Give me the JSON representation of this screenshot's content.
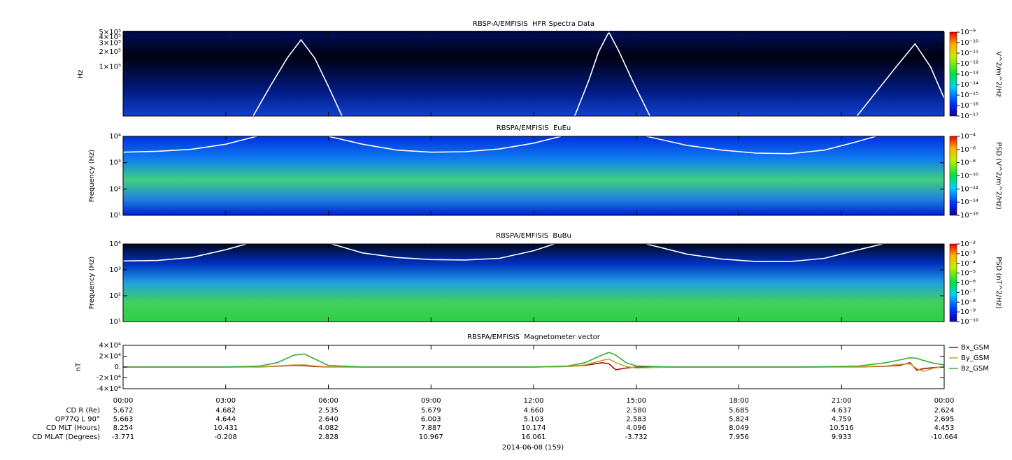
{
  "chart_data": [
    {
      "type": "spectrogram",
      "title": "RBSP-A/EMFISIS  HFR Spectra Data",
      "y_label": "Hz",
      "log_y": true,
      "xlim": [
        0,
        24
      ],
      "ylim": [
        10000,
        500000
      ],
      "yticks": [
        {
          "value": 100000,
          "label": "1×10⁵"
        },
        {
          "value": 200000,
          "label": "2×10⁵"
        },
        {
          "value": 300000,
          "label": "3×10⁵"
        },
        {
          "value": 400000,
          "label": "4×10⁵"
        },
        {
          "value": 500000,
          "label": "5×10⁵"
        }
      ],
      "x": [
        3.8,
        4.3,
        4.8,
        5.2,
        5.6,
        6.0,
        6.4,
        6.5,
        13.2,
        13.6,
        13.9,
        14.2,
        14.5,
        14.9,
        15.4,
        15.5,
        21.45,
        22.0,
        22.6,
        23.15,
        23.6,
        24
      ],
      "series": [
        {
          "color": "#ffffff",
          "values": [
            10000,
            40000,
            150000,
            350000,
            150000,
            40000,
            10000,
            null,
            10000,
            50000,
            200000,
            500000,
            200000,
            50000,
            10000,
            null,
            10000,
            30000,
            100000,
            290000,
            100000,
            23000
          ]
        }
      ],
      "colorbar": {
        "label": "V^2/m^2/Hz",
        "lim": [
          1e-17,
          1e-09
        ],
        "ticks": [
          {
            "value": 1e-17,
            "label": "10⁻¹⁷"
          },
          {
            "value": 1e-16,
            "label": "10⁻¹⁶"
          },
          {
            "value": 1e-15,
            "label": "10⁻¹⁵"
          },
          {
            "value": 1e-14,
            "label": "10⁻¹⁴"
          },
          {
            "value": 1e-13,
            "label": "10⁻¹³"
          },
          {
            "value": 1e-12,
            "label": "10⁻¹²"
          },
          {
            "value": 1e-11,
            "label": "10⁻¹¹"
          },
          {
            "value": 1e-10,
            "label": "10⁻¹⁰"
          },
          {
            "value": 1e-09,
            "label": "10⁻⁹"
          }
        ]
      }
    },
    {
      "type": "spectrogram",
      "title": "RBSPA/EMFISIS  EuEu",
      "y_label": "Frequency (Hz)",
      "log_y": true,
      "xlim": [
        0,
        24
      ],
      "ylim": [
        10,
        10000
      ],
      "yticks": [
        {
          "value": 10,
          "label": "10¹"
        },
        {
          "value": 100,
          "label": "10²"
        },
        {
          "value": 1000,
          "label": "10³"
        },
        {
          "value": 10000,
          "label": "10⁴"
        }
      ],
      "x": [
        0,
        1,
        2,
        3,
        3.9,
        4,
        6.0,
        7,
        8,
        9,
        10,
        11,
        12,
        12.8,
        13,
        15.3,
        16.5,
        17.5,
        18.5,
        19.5,
        20.5,
        21.4,
        22
      ],
      "series": [
        {
          "color": "#ffffff",
          "values": [
            2500,
            2700,
            3200,
            5000,
            10000,
            null,
            10000,
            5000,
            3000,
            2500,
            2600,
            3300,
            5500,
            10000,
            null,
            10000,
            4500,
            3000,
            2300,
            2200,
            3000,
            6000,
            10000
          ]
        }
      ],
      "colorbar": {
        "label": "PSD (V^2/m^2/Hz)",
        "lim": [
          1e-16,
          0.0001
        ],
        "ticks": [
          {
            "value": 1e-16,
            "label": "10⁻¹⁶"
          },
          {
            "value": 1e-14,
            "label": "10⁻¹⁴"
          },
          {
            "value": 1e-12,
            "label": "10⁻¹²"
          },
          {
            "value": 1e-10,
            "label": "10⁻¹⁰"
          },
          {
            "value": 1e-08,
            "label": "10⁻⁸"
          },
          {
            "value": 1e-06,
            "label": "10⁻⁶"
          },
          {
            "value": 0.0001,
            "label": "10⁻⁴"
          }
        ]
      }
    },
    {
      "type": "spectrogram",
      "title": "RBSPA/EMFISIS  BuBu",
      "y_label": "Frequency (Hz)",
      "log_y": true,
      "xlim": [
        0,
        24
      ],
      "ylim": [
        10,
        10000
      ],
      "yticks": [
        {
          "value": 10,
          "label": "10¹"
        },
        {
          "value": 100,
          "label": "10²"
        },
        {
          "value": 1000,
          "label": "10³"
        },
        {
          "value": 10000,
          "label": "10⁴"
        }
      ],
      "x": [
        0,
        1,
        2,
        3,
        3.6,
        4,
        6.1,
        7,
        8,
        9,
        10,
        11,
        12,
        12.6,
        13,
        15.3,
        16.5,
        17.5,
        18.5,
        19.5,
        20.5,
        21.5,
        22.2
      ],
      "series": [
        {
          "color": "#ffffff",
          "values": [
            2200,
            2300,
            3000,
            6000,
            10000,
            null,
            10000,
            4500,
            3000,
            2500,
            2400,
            2800,
            5500,
            10000,
            null,
            10000,
            4000,
            2600,
            2100,
            2100,
            2800,
            6000,
            10000
          ]
        }
      ],
      "colorbar": {
        "label": "PSD (nT^2/Hz)",
        "lim": [
          1e-10,
          0.01
        ],
        "ticks": [
          {
            "value": 1e-10,
            "label": "10⁻¹⁰"
          },
          {
            "value": 1e-09,
            "label": "10⁻⁹"
          },
          {
            "value": 1e-08,
            "label": "10⁻⁸"
          },
          {
            "value": 1e-07,
            "label": "10⁻⁷"
          },
          {
            "value": 1e-06,
            "label": "10⁻⁶"
          },
          {
            "value": 1e-05,
            "label": "10⁻⁵"
          },
          {
            "value": 0.0001,
            "label": "10⁻⁴"
          },
          {
            "value": 0.001,
            "label": "10⁻³"
          },
          {
            "value": 0.01,
            "label": "10⁻²"
          }
        ]
      }
    },
    {
      "type": "line",
      "title": "RBSPA/EMFISIS  Magnetometer vector",
      "y_label": "nT",
      "log_y": false,
      "xlim": [
        0,
        24
      ],
      "ylim": [
        -40000,
        40000
      ],
      "yticks": [
        {
          "value": 40000,
          "label": "4×10⁴"
        },
        {
          "value": 20000,
          "label": "2×10⁴"
        },
        {
          "value": 0,
          "label": "0."
        },
        {
          "value": -20000,
          "label": "-2×10⁴"
        },
        {
          "value": -40000,
          "label": "-4×10⁴"
        }
      ],
      "xticks": [
        {
          "value": 0,
          "label": "00:00"
        },
        {
          "value": 3,
          "label": "03:00"
        },
        {
          "value": 6,
          "label": "06:00"
        },
        {
          "value": 9,
          "label": "09:00"
        },
        {
          "value": 12,
          "label": "12:00"
        },
        {
          "value": 15,
          "label": "15:00"
        },
        {
          "value": 18,
          "label": "18:00"
        },
        {
          "value": 21,
          "label": "21:00"
        },
        {
          "value": 24,
          "label": "00:00"
        }
      ],
      "x": [
        0,
        3,
        4,
        4.5,
        5,
        5.3,
        5.6,
        6,
        7,
        12,
        13,
        13.5,
        14,
        14.2,
        14.4,
        14.7,
        15,
        16,
        20,
        21.5,
        22.3,
        22.7,
        23,
        23.2,
        23.4,
        23.7,
        24
      ],
      "series": [
        {
          "name": "Bx_GSM",
          "color": "#a01010",
          "values": [
            0,
            0,
            300,
            1500,
            3000,
            2500,
            1000,
            200,
            0,
            0,
            1000,
            3000,
            8000,
            6000,
            -5000,
            -2000,
            0,
            0,
            0,
            300,
            1500,
            3000,
            8000,
            -6000,
            -3000,
            -1000,
            0
          ]
        },
        {
          "name": "By_GSM",
          "color": "#c8a030",
          "values": [
            0,
            0,
            500,
            2000,
            4000,
            4000,
            2000,
            500,
            0,
            0,
            1000,
            4000,
            12000,
            15000,
            8000,
            1000,
            -2000,
            0,
            0,
            500,
            2000,
            5000,
            6000,
            -3000,
            -8000,
            -2000,
            0
          ]
        },
        {
          "name": "Bz_GSM",
          "color": "#30b030",
          "values": [
            0,
            0,
            2000,
            8000,
            22000,
            24000,
            15000,
            3000,
            0,
            0,
            2000,
            8000,
            22000,
            27000,
            22000,
            8000,
            2000,
            0,
            0,
            2000,
            8000,
            13000,
            17000,
            16000,
            12000,
            7000,
            4000
          ]
        }
      ]
    }
  ],
  "ephemeris": {
    "labels": [
      "CD R (Re)",
      "OP77Q L 90°",
      "CD MLT (Hours)",
      "CD MLAT (Degrees)"
    ],
    "rows": [
      [
        "5.672",
        "4.682",
        "2.535",
        "5.679",
        "4.660",
        "2.580",
        "5.685",
        "4.637",
        "2.624"
      ],
      [
        "5.663",
        "4.644",
        "2.640",
        "6.003",
        "5.103",
        "2.583",
        "5.824",
        "4.759",
        "2.695"
      ],
      [
        "8.254",
        "10.431",
        "4.082",
        "7.887",
        "10.174",
        "4.096",
        "8.049",
        "10.516",
        "4.453"
      ],
      [
        "-3.771",
        "-0.208",
        "2.828",
        "10.967",
        "16.061",
        "-3.732",
        "7.956",
        "9.933",
        "-10.664"
      ]
    ]
  },
  "date": "2014-06-08 (159)"
}
